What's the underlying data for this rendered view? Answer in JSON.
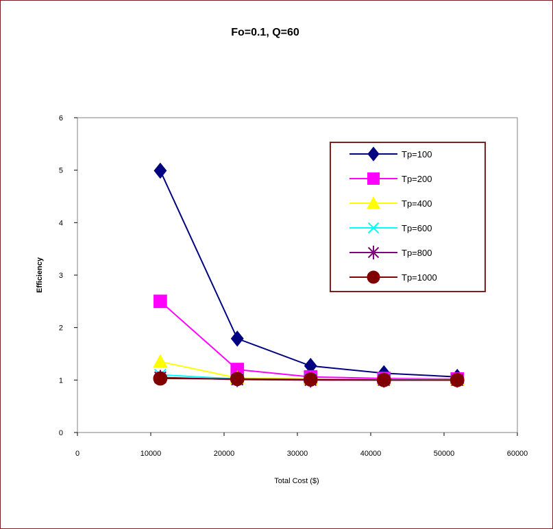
{
  "chart_data": {
    "type": "line",
    "title": "Fo=0.1, Q=60",
    "xlabel": "Total Cost ($)",
    "ylabel": "Efficiency",
    "xlim": [
      0,
      60000
    ],
    "ylim": [
      0,
      6
    ],
    "x_ticks": [
      "0",
      "10000",
      "20000",
      "30000",
      "40000",
      "50000",
      "60000"
    ],
    "y_ticks": [
      "0",
      "1",
      "2",
      "3",
      "4",
      "5",
      "6"
    ],
    "grid": false,
    "legend_position": "top-right",
    "series": [
      {
        "name": "Tp=100",
        "color": "#000080",
        "marker": "diamond",
        "x": [
          11300,
          21800,
          31800,
          41800,
          51800
        ],
        "y": [
          4.99,
          1.79,
          1.27,
          1.13,
          1.06
        ]
      },
      {
        "name": "Tp=200",
        "color": "#ff00ff",
        "marker": "square",
        "x": [
          11300,
          21800,
          31800,
          41800,
          51800
        ],
        "y": [
          2.5,
          1.2,
          1.06,
          1.03,
          1.02
        ]
      },
      {
        "name": "Tp=400",
        "color": "#ffff00",
        "marker": "triangle",
        "x": [
          11300,
          21800,
          31800,
          41800,
          51800
        ],
        "y": [
          1.35,
          1.04,
          1.02,
          1.01,
          1.01
        ]
      },
      {
        "name": "Tp=600",
        "color": "#00ffff",
        "marker": "x",
        "x": [
          11300,
          21800,
          31800,
          41800,
          51800
        ],
        "y": [
          1.1,
          1.02,
          1.01,
          1.01,
          1.0
        ]
      },
      {
        "name": "Tp=800",
        "color": "#800080",
        "marker": "asterisk",
        "x": [
          11300,
          21800,
          31800,
          41800,
          51800
        ],
        "y": [
          1.05,
          1.01,
          1.0,
          1.0,
          1.0
        ]
      },
      {
        "name": "Tp=1000",
        "color": "#800000",
        "marker": "circle",
        "x": [
          11300,
          21800,
          31800,
          41800,
          51800
        ],
        "y": [
          1.03,
          1.02,
          1.01,
          1.0,
          1.0
        ]
      }
    ]
  }
}
